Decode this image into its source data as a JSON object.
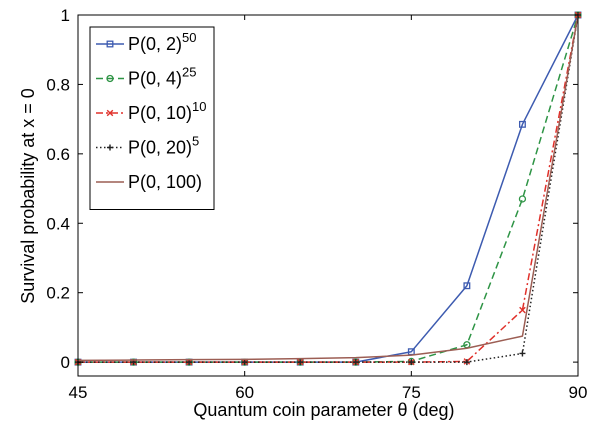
{
  "chart_data": {
    "type": "line",
    "xlabel": "Quantum coin parameter θ (deg)",
    "ylabel": "Survival probability at  x = 0",
    "xlim": [
      45,
      90
    ],
    "ylim": [
      -0.04,
      1.0
    ],
    "xticks": [
      45,
      60,
      75,
      90
    ],
    "yticks": [
      0,
      0.2,
      0.4,
      0.6,
      0.8,
      1
    ],
    "xtick_labels": [
      "45",
      "60",
      "75",
      "90"
    ],
    "ytick_labels": [
      "0",
      "0.2",
      "0.4",
      "0.6",
      "0.8",
      "1"
    ],
    "grid": false,
    "legend_position": "top-left",
    "series": [
      {
        "base": "P(0, 2)",
        "exp": "50",
        "color": "#3d5bb0",
        "dash": "",
        "marker": "square",
        "x": [
          45,
          50,
          55,
          60,
          65,
          70,
          75,
          80,
          85,
          90
        ],
        "y": [
          0,
          0,
          0,
          0,
          0,
          0,
          0.03,
          0.22,
          0.685,
          1.0
        ]
      },
      {
        "base": "P(0, 4)",
        "exp": "25",
        "color": "#2e9445",
        "dash": "7,4",
        "marker": "circle",
        "x": [
          45,
          50,
          55,
          60,
          65,
          70,
          75,
          80,
          85,
          90
        ],
        "y": [
          0,
          0,
          0,
          0,
          0,
          0,
          0.002,
          0.05,
          0.47,
          1.0
        ]
      },
      {
        "base": "P(0, 10)",
        "exp": "10",
        "color": "#e0302a",
        "dash": "7,3,2,3",
        "marker": "x",
        "x": [
          45,
          50,
          55,
          60,
          65,
          70,
          75,
          80,
          85,
          90
        ],
        "y": [
          0,
          0,
          0,
          0,
          0,
          0,
          0,
          0.002,
          0.15,
          1.0
        ]
      },
      {
        "base": "P(0, 20)",
        "exp": "5",
        "color": "#222222",
        "dash": "1.5,2.5",
        "marker": "plus",
        "x": [
          45,
          50,
          55,
          60,
          65,
          70,
          75,
          80,
          85,
          90
        ],
        "y": [
          0,
          0,
          0,
          0,
          0,
          0,
          0,
          0,
          0.025,
          1.0
        ]
      },
      {
        "base": "P(0, 100)",
        "exp": "",
        "color": "#9c5e54",
        "dash": "",
        "marker": "none",
        "x": [
          45,
          50,
          55,
          60,
          65,
          70,
          75,
          80,
          85,
          90
        ],
        "y": [
          0.005,
          0.006,
          0.007,
          0.008,
          0.01,
          0.013,
          0.02,
          0.04,
          0.075,
          1.0
        ]
      }
    ]
  }
}
